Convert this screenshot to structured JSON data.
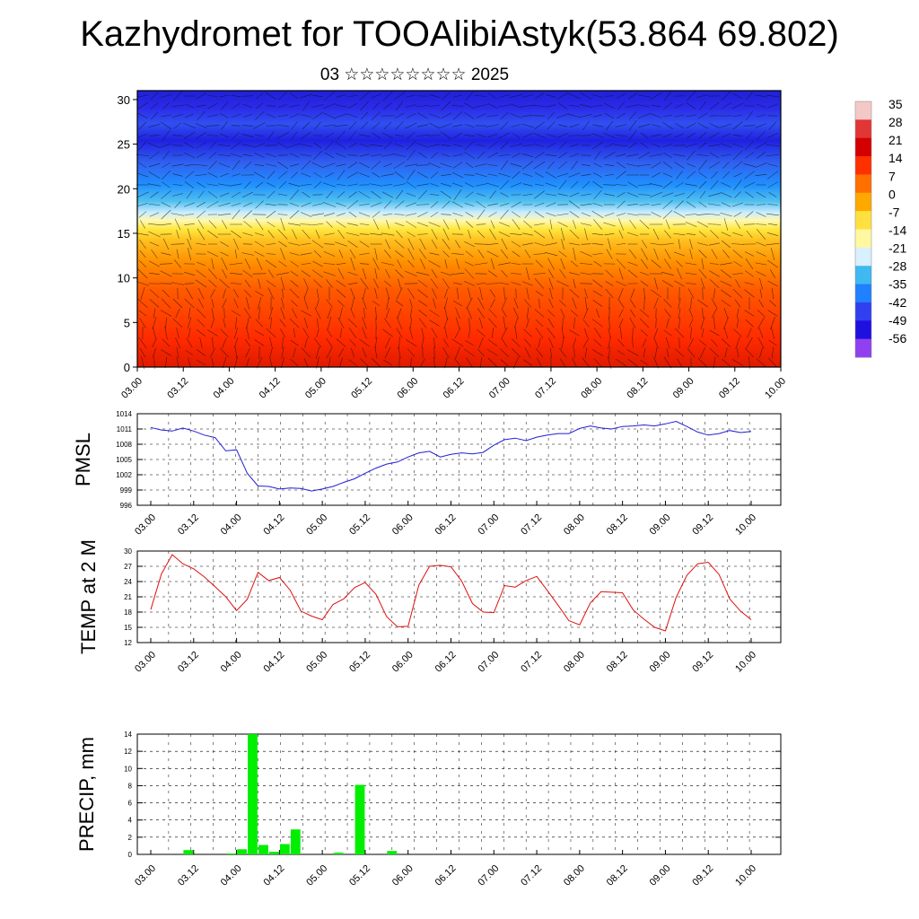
{
  "title": "Kazhydromet for TOOAlibiAstyk(53.864 69.802)",
  "subtitle": "03 ☆☆☆☆☆☆☆☆ 2025",
  "colors": {
    "pmsl_line": "#1f1fd6",
    "temp_line": "#e01010",
    "precip_bar": "#00ee00",
    "grid": "#000000"
  },
  "chart_data": [
    {
      "type": "heatmap",
      "name": "cross-section",
      "x_ticks": [
        "03.00",
        "03.12",
        "04.00",
        "04.12",
        "05.00",
        "05.12",
        "06.00",
        "06.12",
        "07.00",
        "07.12",
        "08.00",
        "08.12",
        "09.00",
        "09.12",
        "10.00"
      ],
      "y_ticks": [
        "0",
        "5",
        "10",
        "15",
        "20",
        "25",
        "30"
      ],
      "ylim": [
        0,
        31
      ],
      "colorbar": {
        "labels": [
          "35",
          "28",
          "21",
          "14",
          "7",
          "0",
          "-7",
          "-14",
          "-21",
          "-28",
          "-35",
          "-42",
          "-49",
          "-56"
        ],
        "colors": [
          "#f5c8c8",
          "#e23636",
          "#d40000",
          "#ff3000",
          "#ff7000",
          "#ffa800",
          "#ffe040",
          "#fff8a0",
          "#d8f0ff",
          "#40b8f0",
          "#2080ff",
          "#3040f0",
          "#2010e0",
          "#9040f0"
        ]
      },
      "vectors": true
    },
    {
      "type": "line",
      "name": "pmsl",
      "ylabel": "PMSL",
      "x_ticks": [
        "03.00",
        "03.12",
        "04.00",
        "04.12",
        "05.00",
        "05.12",
        "06.00",
        "06.12",
        "07.00",
        "07.12",
        "08.00",
        "08.12",
        "09.00",
        "09.12",
        "10.00"
      ],
      "y_ticks": [
        "1014",
        "1011",
        "1008",
        "1005",
        "1002",
        "999",
        "996"
      ],
      "ylim": [
        996,
        1014
      ],
      "values": [
        1011.3,
        1010.8,
        1010.6,
        1011.2,
        1010.6,
        1009.8,
        1009.3,
        1006.7,
        1006.9,
        1002.3,
        999.8,
        999.7,
        999.2,
        999.4,
        999.3,
        998.8,
        999.2,
        999.7,
        1000.5,
        1001.2,
        1002.3,
        1003.3,
        1004.1,
        1004.5,
        1005.5,
        1006.3,
        1006.6,
        1005.5,
        1006.0,
        1006.3,
        1006.1,
        1006.4,
        1007.8,
        1008.9,
        1009.2,
        1008.7,
        1009.4,
        1009.8,
        1010.1,
        1010.1,
        1011.1,
        1011.6,
        1011.2,
        1011.0,
        1011.5,
        1011.6,
        1011.8,
        1011.6,
        1012.0,
        1012.5,
        1011.5,
        1010.4,
        1009.8,
        1010.1,
        1010.7,
        1010.3,
        1010.5
      ],
      "grid": true
    },
    {
      "type": "line",
      "name": "temp2m",
      "ylabel": "TEMP at 2 M",
      "x_ticks": [
        "03.00",
        "03.12",
        "04.00",
        "04.12",
        "05.00",
        "05.12",
        "06.00",
        "06.12",
        "07.00",
        "07.12",
        "08.00",
        "08.12",
        "09.00",
        "09.12",
        "10.00"
      ],
      "y_ticks": [
        "30",
        "27",
        "24",
        "21",
        "18",
        "15",
        "12"
      ],
      "ylim": [
        12,
        30
      ],
      "values": [
        18.5,
        25.5,
        29.3,
        27.5,
        26.5,
        24.9,
        23.0,
        21.0,
        18.3,
        20.5,
        25.8,
        24.2,
        24.8,
        22.3,
        18.2,
        17.2,
        16.5,
        19.5,
        20.6,
        22.8,
        23.8,
        21.5,
        17.1,
        15.1,
        15.2,
        23.3,
        27.0,
        27.2,
        26.9,
        24.1,
        19.7,
        18.0,
        17.9,
        23.2,
        22.9,
        24.2,
        25.0,
        22.2,
        19.3,
        16.3,
        15.5,
        19.8,
        22.0,
        21.9,
        21.8,
        18.4,
        16.6,
        15.0,
        14.3,
        20.9,
        25.2,
        27.5,
        27.8,
        25.4,
        20.6,
        18.2,
        16.5
      ],
      "grid": true
    },
    {
      "type": "bar",
      "name": "precip",
      "ylabel": "PRECIP, mm",
      "x_ticks": [
        "03.00",
        "03.12",
        "04.00",
        "04.12",
        "05.00",
        "05.12",
        "06.00",
        "06.12",
        "07.00",
        "07.12",
        "08.00",
        "08.12",
        "09.00",
        "09.12",
        "10.00"
      ],
      "y_ticks": [
        "14",
        "12",
        "10",
        "8",
        "6",
        "4",
        "2",
        "0"
      ],
      "ylim": [
        0,
        14
      ],
      "values": [
        0,
        0,
        0,
        0.5,
        0,
        0,
        0,
        0.1,
        0.6,
        14,
        1.1,
        0.3,
        1.2,
        2.9,
        0,
        0,
        0,
        0.2,
        0,
        8.1,
        0,
        0,
        0.4,
        0,
        0,
        0,
        0,
        0,
        0,
        0,
        0,
        0,
        0,
        0,
        0,
        0,
        0,
        0,
        0,
        0,
        0,
        0,
        0,
        0,
        0,
        0,
        0,
        0,
        0,
        0,
        0,
        0,
        0,
        0,
        0,
        0,
        0
      ],
      "grid": true
    }
  ]
}
